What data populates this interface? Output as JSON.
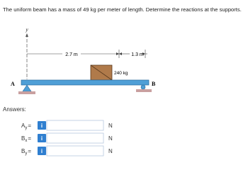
{
  "problem": {
    "text": "The uniform beam has a mass of 49 kg per meter of length. Determine the reactions at the supports."
  },
  "diagram": {
    "axis_label": "y",
    "dim_left": "2.7 m",
    "dim_right": "1.3 m",
    "load": "240 kg",
    "support_left": "A",
    "support_right": "B"
  },
  "answers": {
    "heading": "Answers:",
    "info_icon": "i",
    "rows": [
      {
        "symbol": "A",
        "subscript": "y",
        "equals": "=",
        "unit": "N"
      },
      {
        "symbol": "B",
        "subscript": "x",
        "equals": "=",
        "unit": "N"
      },
      {
        "symbol": "B",
        "subscript": "y",
        "equals": "=",
        "unit": "N"
      }
    ]
  }
}
